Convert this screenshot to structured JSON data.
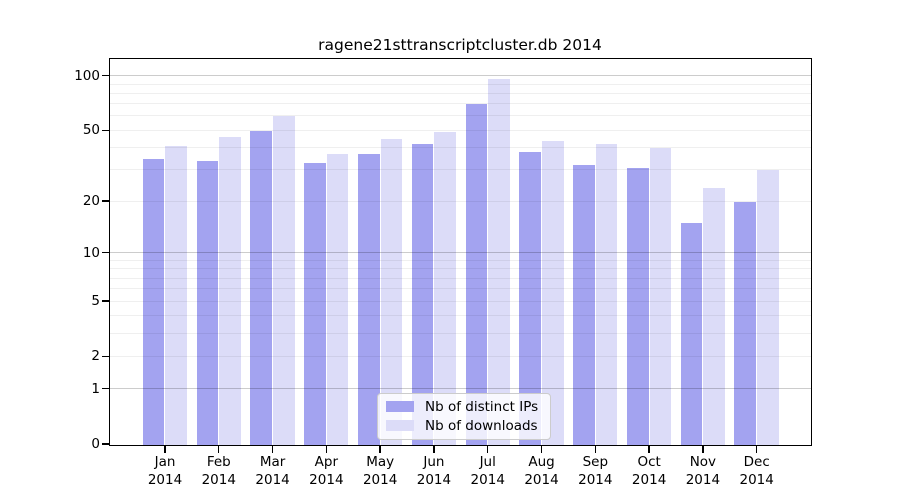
{
  "title": "ragene21sttranscriptcluster.db 2014",
  "chart_data": {
    "type": "bar",
    "title": "ragene21sttranscriptcluster.db 2014",
    "categories": [
      "Jan",
      "Feb",
      "Mar",
      "Apr",
      "May",
      "Jun",
      "Jul",
      "Aug",
      "Sep",
      "Oct",
      "Nov",
      "Dec"
    ],
    "year": "2014",
    "series": [
      {
        "name": "Nb of distinct IPs",
        "color": "#a3a3f0",
        "values": [
          35,
          34,
          50,
          33,
          37,
          42,
          70,
          38,
          32,
          31,
          15,
          20
        ]
      },
      {
        "name": "Nb of downloads",
        "color": "#dcdcf8",
        "values": [
          41,
          46,
          60,
          37,
          45,
          49,
          97,
          44,
          42,
          40,
          24,
          30
        ]
      }
    ],
    "yscale": "log10(1+v)",
    "ylim": [
      0,
      122
    ],
    "yticks": [
      0,
      1,
      2,
      5,
      10,
      20,
      50,
      100
    ],
    "grid_major": [
      1,
      10,
      100
    ],
    "grid_minor": [
      2,
      3,
      4,
      5,
      6,
      7,
      8,
      9,
      20,
      30,
      40,
      50,
      60,
      70,
      80,
      90
    ],
    "grid": "on",
    "legend_position": "bottom-center",
    "colors": {
      "axis": "#000000",
      "grid_major": "#c6c6c6",
      "grid_minor": "#ebebeb",
      "background": "#ffffff",
      "legend_border": "#cccccc"
    }
  },
  "legend": {
    "items": [
      {
        "label": "Nb of distinct IPs"
      },
      {
        "label": "Nb of downloads"
      }
    ]
  }
}
